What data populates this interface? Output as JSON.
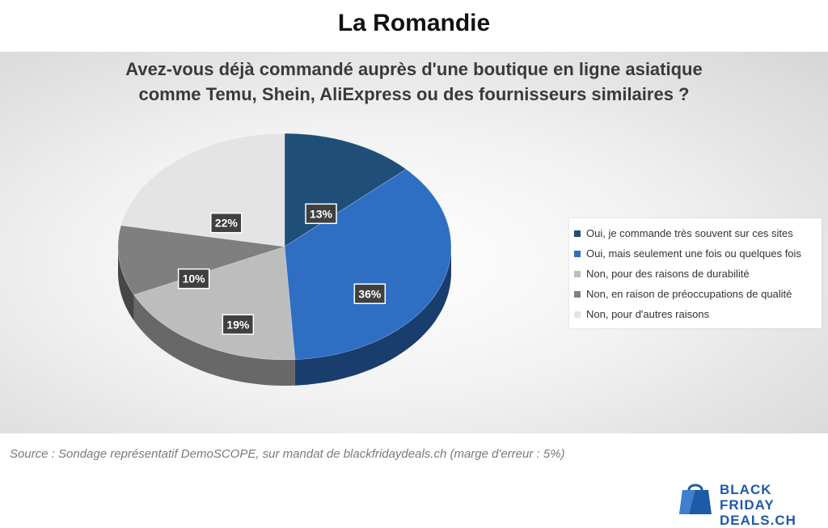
{
  "page": {
    "title": "La Romandie",
    "source": "Source : Sondage représentatif DemoSCOPE, sur mandat de blackfridaydeals.ch (marge d'erreur : 5%)"
  },
  "logo": {
    "line1": "BLACK FRIDAY",
    "line2": "DEALS.CH",
    "color": "#1e5aa8"
  },
  "chart_data": {
    "type": "pie",
    "title_lines": [
      "Avez-vous déjà commandé auprès d'une boutique en ligne asiatique",
      "comme Temu, Shein, AliExpress ou des fournisseurs similaires ?"
    ],
    "legend_placement": "right",
    "slices": [
      {
        "label": "Oui, je commande très souvent sur ces sites",
        "value": 13,
        "display": "13%",
        "color": "#1f4e79"
      },
      {
        "label": "Oui, mais seulement une fois ou quelques fois",
        "value": 36,
        "display": "36%",
        "color": "#2e6fc4"
      },
      {
        "label": "Non, pour des raisons de durabilité",
        "value": 19,
        "display": "19%",
        "color": "#bdbdbd"
      },
      {
        "label": "Non, en raison de préoccupations de qualité",
        "value": 10,
        "display": "10%",
        "color": "#7f7f7f"
      },
      {
        "label": "Non, pour d'autres raisons",
        "value": 22,
        "display": "22%",
        "color": "#e4e4e4"
      }
    ]
  }
}
